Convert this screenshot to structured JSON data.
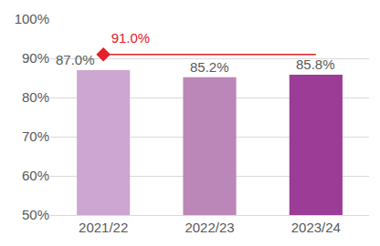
{
  "chart_data": {
    "type": "bar",
    "categories": [
      "2021/22",
      "2022/23",
      "2023/24"
    ],
    "series": [
      {
        "type": "bar",
        "colors": [
          "#cda6d1",
          "#bb86b8",
          "#9c3c97"
        ],
        "values": [
          87.0,
          85.2,
          85.8
        ],
        "value_labels": [
          "87.0%",
          "85.2%",
          "85.8%"
        ]
      },
      {
        "type": "line",
        "color": "#e3202b",
        "marker": "diamond",
        "values": [
          91.0,
          91.0,
          91.0
        ],
        "value_labels": [
          "91.0%",
          null,
          null
        ]
      }
    ],
    "data_labels": true,
    "ylim": [
      50,
      100
    ],
    "yticks": [
      {
        "value": 50,
        "label": "50%"
      },
      {
        "value": 60,
        "label": "60%"
      },
      {
        "value": 70,
        "label": "70%"
      },
      {
        "value": 80,
        "label": "80%"
      },
      {
        "value": 90,
        "label": "90%"
      },
      {
        "value": 100,
        "label": "100%"
      }
    ],
    "grid": true
  }
}
